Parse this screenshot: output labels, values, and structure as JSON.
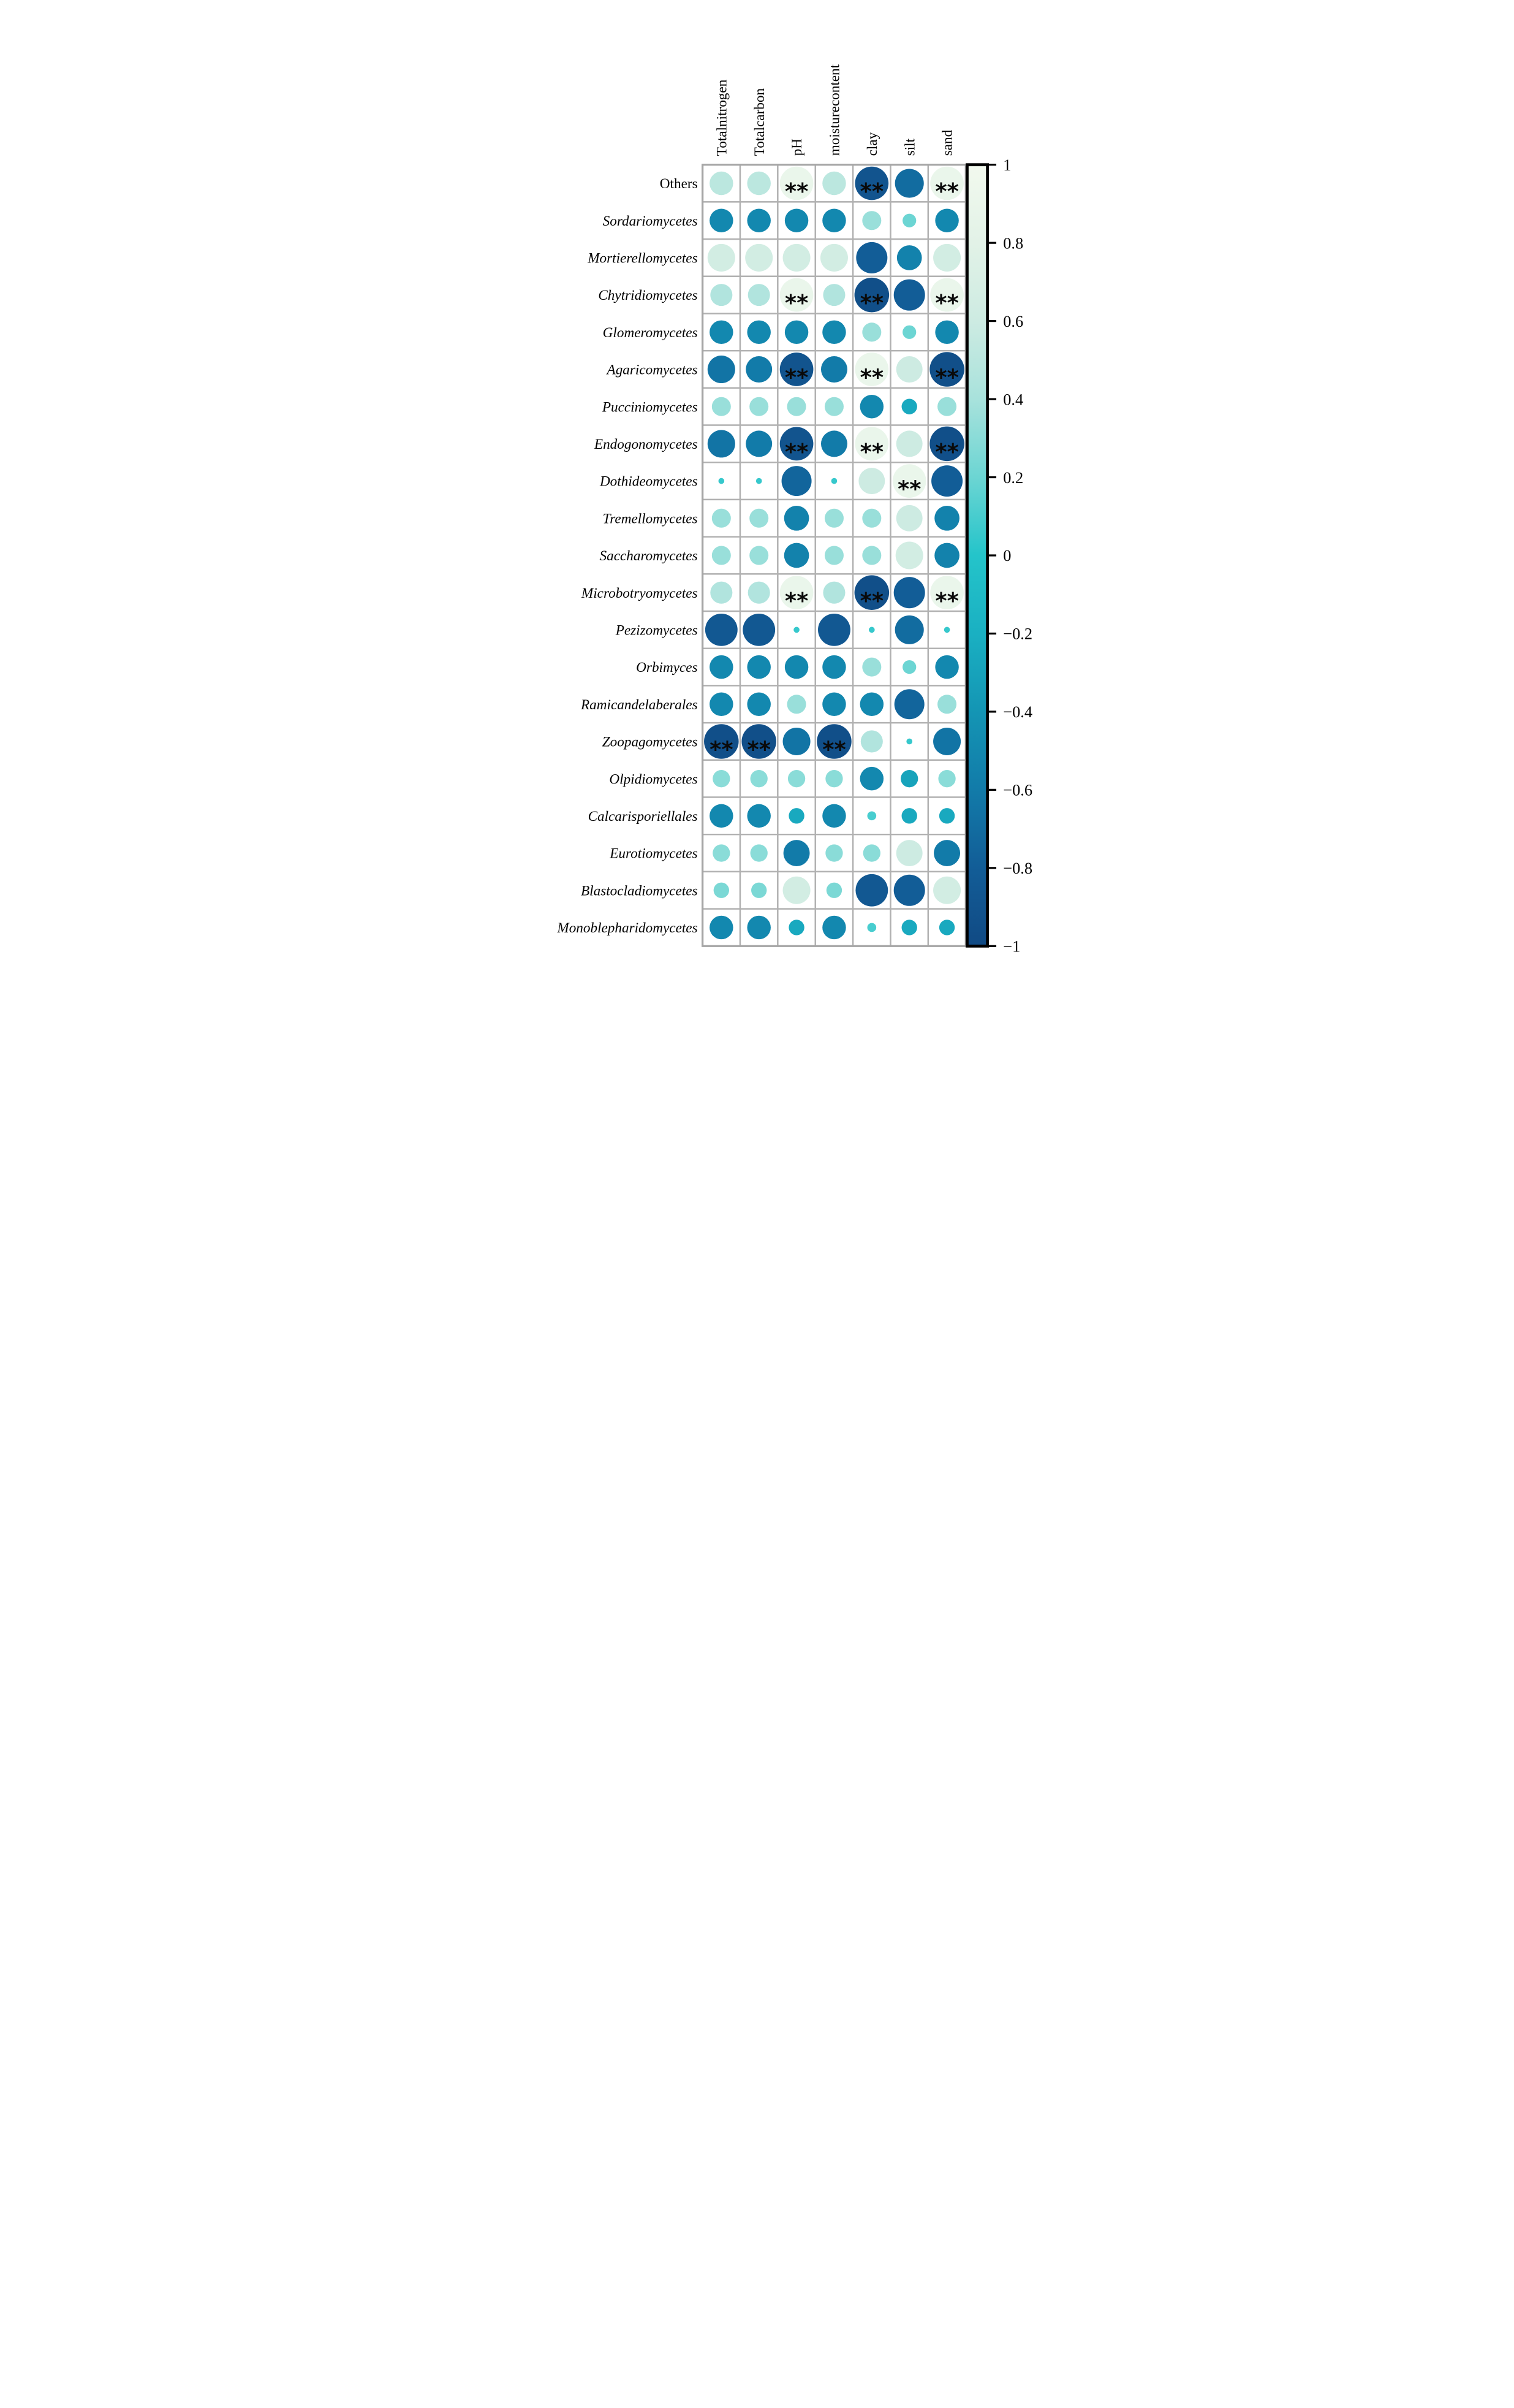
{
  "figure": {
    "background": "#ffffff",
    "description": "Correlation bubble matrix between fungal classes and soil properties with significance markers and vertical colorbar"
  },
  "chart_data": {
    "type": "heatmap",
    "subtype": "correlation-bubble-matrix",
    "columns": [
      "Totalnitrogen",
      "Totalcarbon",
      "pH",
      "moisturecontent",
      "clay",
      "silt",
      "sand"
    ],
    "rows": [
      {
        "label": "Others",
        "italic": false
      },
      {
        "label": "Sordariomycetes",
        "italic": true
      },
      {
        "label": "Mortierellomycetes",
        "italic": true
      },
      {
        "label": "Chytridiomycetes",
        "italic": true
      },
      {
        "label": "Glomeromycetes",
        "italic": true
      },
      {
        "label": "Agaricomycetes",
        "italic": true
      },
      {
        "label": "Pucciniomycetes",
        "italic": true
      },
      {
        "label": "Endogonomycetes",
        "italic": true
      },
      {
        "label": "Dothideomycetes",
        "italic": true
      },
      {
        "label": "Tremellomycetes",
        "italic": true
      },
      {
        "label": "Saccharomycetes",
        "italic": true
      },
      {
        "label": "Microbotryomycetes",
        "italic": true
      },
      {
        "label": "Pezizomycetes",
        "italic": true
      },
      {
        "label": "Orbimyces",
        "italic": true
      },
      {
        "label": "Ramicandelaberales",
        "italic": true
      },
      {
        "label": "Zoopagomycetes",
        "italic": true
      },
      {
        "label": "Olpidiomycetes",
        "italic": true
      },
      {
        "label": "Calcarisporiellales",
        "italic": true
      },
      {
        "label": "Eurotiomycetes",
        "italic": true
      },
      {
        "label": "Blastocladiomycetes",
        "italic": true
      },
      {
        "label": "Monoblepharidomycetes",
        "italic": true
      }
    ],
    "values": [
      [
        0.5,
        0.5,
        0.9,
        0.5,
        -0.9,
        -0.7,
        0.9
      ],
      [
        -0.5,
        -0.5,
        -0.5,
        -0.5,
        0.35,
        0.2,
        -0.5
      ],
      [
        0.65,
        0.65,
        0.65,
        0.65,
        -0.8,
        -0.55,
        0.65
      ],
      [
        0.45,
        0.45,
        0.9,
        0.45,
        -0.95,
        -0.8,
        0.9
      ],
      [
        -0.5,
        -0.5,
        -0.5,
        -0.5,
        0.35,
        0.2,
        -0.5
      ],
      [
        -0.65,
        -0.6,
        -0.9,
        -0.6,
        0.9,
        0.6,
        -0.95
      ],
      [
        0.35,
        0.35,
        0.35,
        0.35,
        -0.5,
        -0.25,
        0.35
      ],
      [
        -0.65,
        -0.6,
        -0.9,
        -0.6,
        0.9,
        0.6,
        -0.95
      ],
      [
        0.05,
        0.05,
        -0.75,
        0.05,
        0.6,
        0.9,
        -0.8
      ],
      [
        0.35,
        0.35,
        -0.55,
        0.35,
        0.35,
        0.6,
        -0.55
      ],
      [
        0.35,
        0.35,
        -0.55,
        0.35,
        0.35,
        0.65,
        -0.55
      ],
      [
        0.45,
        0.45,
        0.9,
        0.45,
        -0.95,
        -0.8,
        0.9
      ],
      [
        -0.85,
        -0.85,
        0.05,
        -0.85,
        0.05,
        -0.7,
        0.05
      ],
      [
        -0.5,
        -0.5,
        -0.5,
        -0.5,
        0.35,
        0.2,
        -0.5
      ],
      [
        -0.5,
        -0.5,
        0.35,
        -0.5,
        -0.5,
        -0.75,
        0.35
      ],
      [
        -0.95,
        -0.95,
        -0.65,
        -0.95,
        0.45,
        0.05,
        -0.65
      ],
      [
        0.3,
        0.3,
        0.3,
        0.3,
        -0.5,
        -0.3,
        0.3
      ],
      [
        -0.5,
        -0.5,
        -0.25,
        -0.5,
        0.1,
        -0.25,
        -0.25
      ],
      [
        0.3,
        0.3,
        -0.6,
        0.3,
        0.3,
        0.6,
        -0.6
      ],
      [
        0.25,
        0.25,
        0.65,
        0.25,
        -0.85,
        -0.8,
        0.65
      ],
      [
        -0.5,
        -0.5,
        -0.25,
        -0.5,
        0.1,
        -0.25,
        -0.25
      ]
    ],
    "significance": [
      [
        0,
        0,
        1,
        0,
        1,
        0,
        1
      ],
      [
        0,
        0,
        0,
        0,
        0,
        0,
        0
      ],
      [
        0,
        0,
        0,
        0,
        0,
        0,
        0
      ],
      [
        0,
        0,
        1,
        0,
        1,
        0,
        1
      ],
      [
        0,
        0,
        0,
        0,
        0,
        0,
        0
      ],
      [
        0,
        0,
        1,
        0,
        1,
        0,
        1
      ],
      [
        0,
        0,
        0,
        0,
        0,
        0,
        0
      ],
      [
        0,
        0,
        1,
        0,
        1,
        0,
        1
      ],
      [
        0,
        0,
        0,
        0,
        0,
        1,
        0
      ],
      [
        0,
        0,
        0,
        0,
        0,
        0,
        0
      ],
      [
        0,
        0,
        0,
        0,
        0,
        0,
        0
      ],
      [
        0,
        0,
        1,
        0,
        1,
        0,
        1
      ],
      [
        0,
        0,
        0,
        0,
        0,
        0,
        0
      ],
      [
        0,
        0,
        0,
        0,
        0,
        0,
        0
      ],
      [
        0,
        0,
        0,
        0,
        0,
        0,
        0
      ],
      [
        1,
        1,
        0,
        1,
        0,
        0,
        0
      ],
      [
        0,
        0,
        0,
        0,
        0,
        0,
        0
      ],
      [
        0,
        0,
        0,
        0,
        0,
        0,
        0
      ],
      [
        0,
        0,
        0,
        0,
        0,
        0,
        0
      ],
      [
        0,
        0,
        0,
        0,
        0,
        0,
        0
      ],
      [
        0,
        0,
        0,
        0,
        0,
        0,
        0
      ]
    ],
    "sig_symbol": "**",
    "sig_color": "#0a0a0a",
    "colorbar": {
      "position": "right",
      "min": -1,
      "max": 1,
      "tick_values": [
        1,
        0.8,
        0.6,
        0.4,
        0.2,
        0,
        -0.2,
        -0.4,
        -0.6,
        -0.8,
        -1
      ],
      "tick_labels": [
        "1",
        "0.8",
        "0.6",
        "0.4",
        "0.2",
        "0",
        "−0.2",
        "−0.4",
        "−0.6",
        "−0.8",
        "−1"
      ],
      "border_color": "#000000"
    },
    "colormap": [
      {
        "v": -1.0,
        "c": "#114a84"
      },
      {
        "v": -0.8,
        "c": "#125d97"
      },
      {
        "v": -0.6,
        "c": "#127ba9"
      },
      {
        "v": -0.4,
        "c": "#1495b4"
      },
      {
        "v": -0.2,
        "c": "#1ab0c2"
      },
      {
        "v": 0.0,
        "c": "#24c4ca"
      },
      {
        "v": 0.2,
        "c": "#6cd5d3"
      },
      {
        "v": 0.4,
        "c": "#a8e2dc"
      },
      {
        "v": 0.6,
        "c": "#cdebe2"
      },
      {
        "v": 0.8,
        "c": "#e2f2e7"
      },
      {
        "v": 1.0,
        "c": "#f2f9ee"
      }
    ],
    "grid": {
      "line_color": "#b1b1b1",
      "outer_line_color": "#a6a6a6",
      "cell_fill": "#ffffff"
    },
    "text_color": "#000000"
  }
}
